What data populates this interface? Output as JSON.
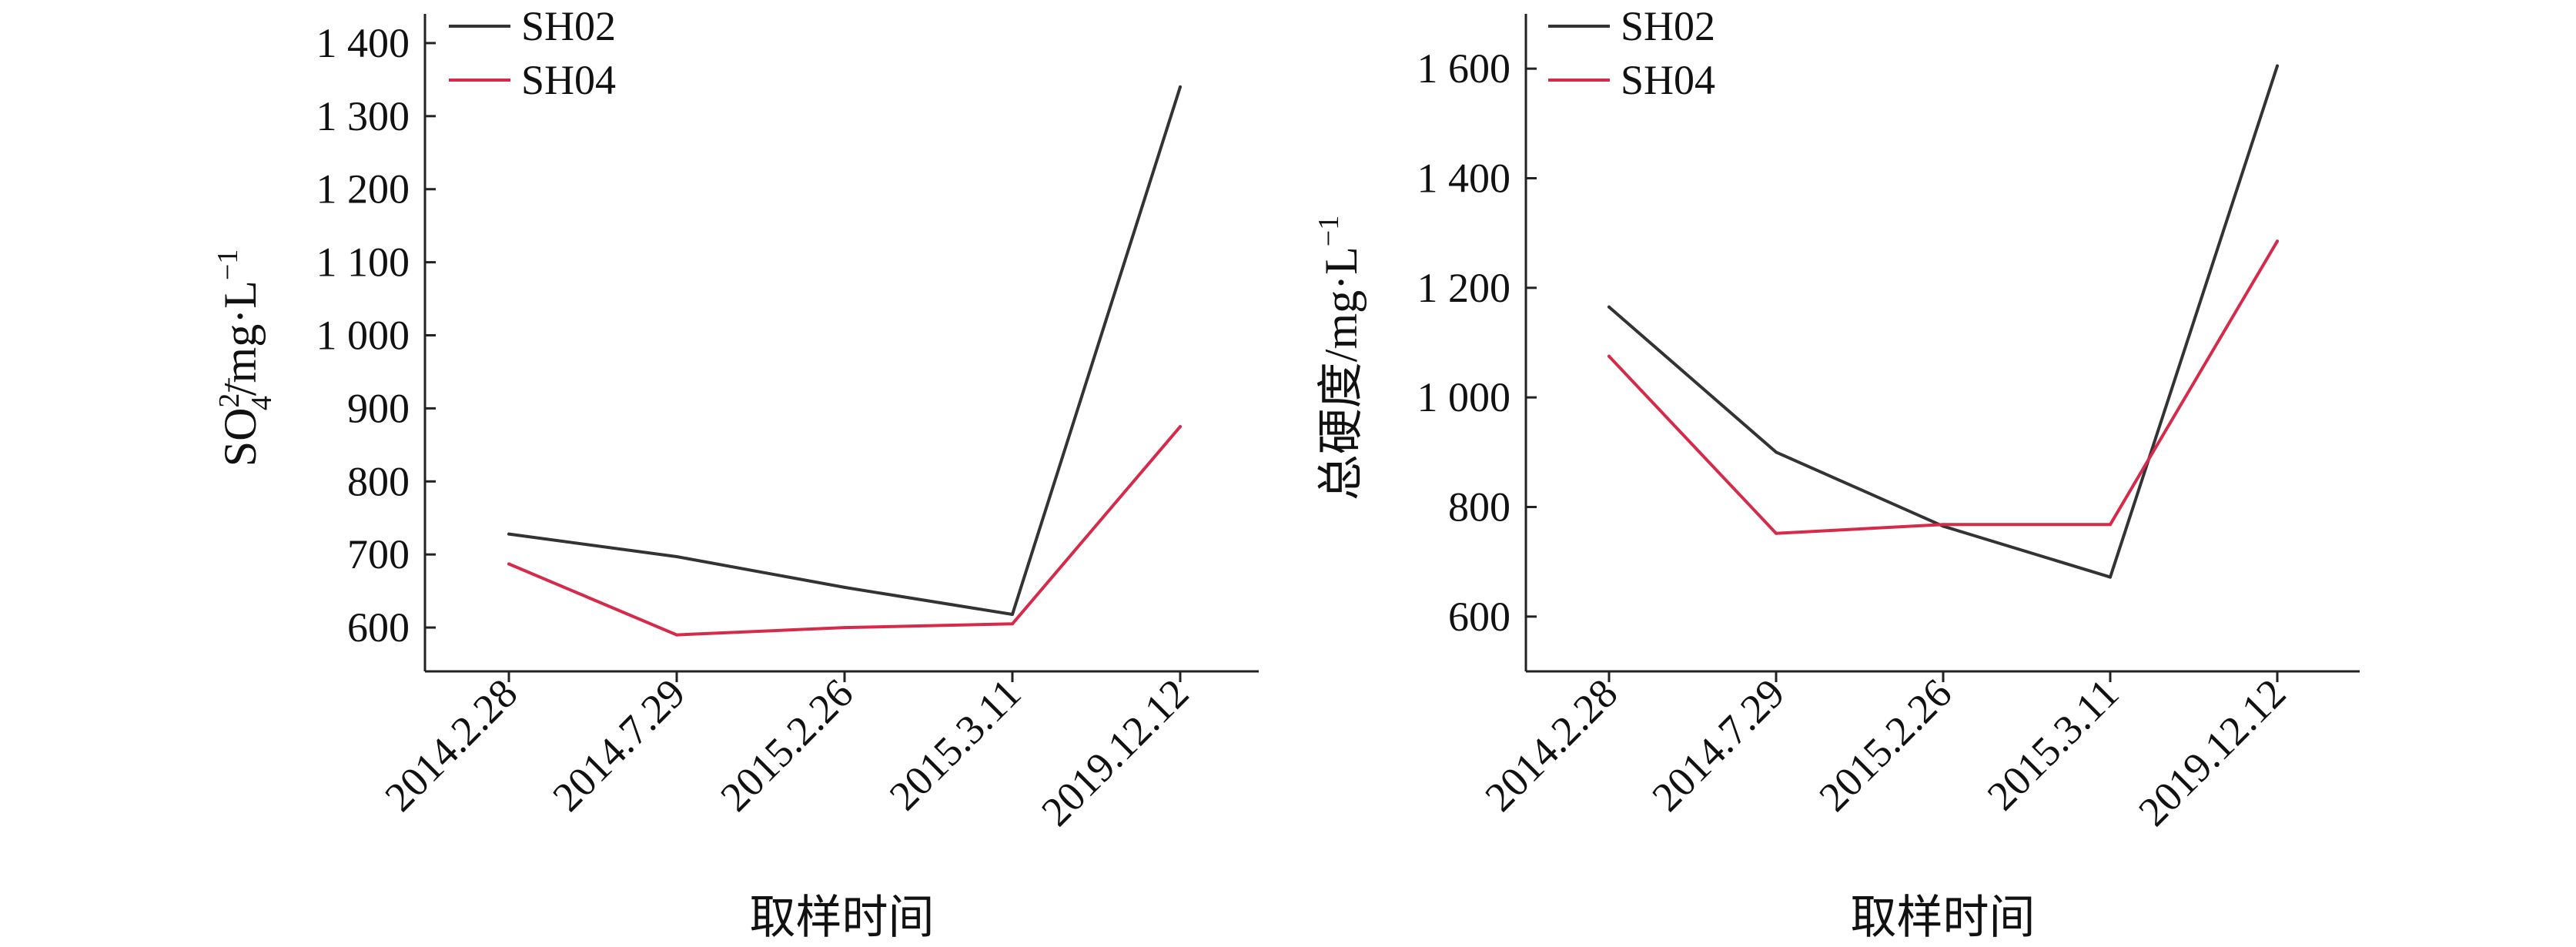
{
  "chart_data": [
    {
      "type": "line",
      "title": "",
      "xlabel": "取样时间",
      "ylabel": "SO42−/mg·L−1",
      "ylabel_parts": {
        "base": "SO",
        "sub": "4",
        "sup": "2−",
        "rest": "/mg·L",
        "rest_sup": "−1"
      },
      "categories": [
        "2014.2.28",
        "2014.7.29",
        "2015.2.26",
        "2015.3.11",
        "2019.12.12"
      ],
      "yticks": [
        600,
        700,
        800,
        900,
        1000,
        1100,
        1200,
        1300,
        1400
      ],
      "ytick_labels": [
        "600",
        "700",
        "800",
        "900",
        "1 000",
        "1 100",
        "1 200",
        "1 300",
        "1 400"
      ],
      "ylim": [
        540,
        1440
      ],
      "legend": "top-left",
      "grid": false,
      "series": [
        {
          "name": "SH02",
          "color": "#333333",
          "values": [
            728,
            697,
            655,
            618,
            1340
          ]
        },
        {
          "name": "SH04",
          "color": "#d62a4a",
          "values": [
            687,
            590,
            600,
            605,
            875
          ]
        }
      ]
    },
    {
      "type": "line",
      "title": "",
      "xlabel": "取样时间",
      "ylabel": "总硬度/mg·L−1",
      "ylabel_parts": {
        "base": "总硬度/mg·L",
        "sub": "",
        "sup": "",
        "rest": "",
        "rest_sup": "−1"
      },
      "categories": [
        "2014.2.28",
        "2014.7.29",
        "2015.2.26",
        "2015.3.11",
        "2019.12.12"
      ],
      "yticks": [
        600,
        800,
        1000,
        1200,
        1400,
        1600
      ],
      "ytick_labels": [
        "600",
        "800",
        "1 000",
        "1 200",
        "1 400",
        "1 600"
      ],
      "ylim": [
        500,
        1700
      ],
      "legend": "top-left",
      "grid": false,
      "series": [
        {
          "name": "SH02",
          "color": "#333333",
          "values": [
            1165,
            900,
            765,
            672,
            1605
          ]
        },
        {
          "name": "SH04",
          "color": "#d62a4a",
          "values": [
            1075,
            752,
            768,
            768,
            1285
          ]
        }
      ]
    }
  ]
}
